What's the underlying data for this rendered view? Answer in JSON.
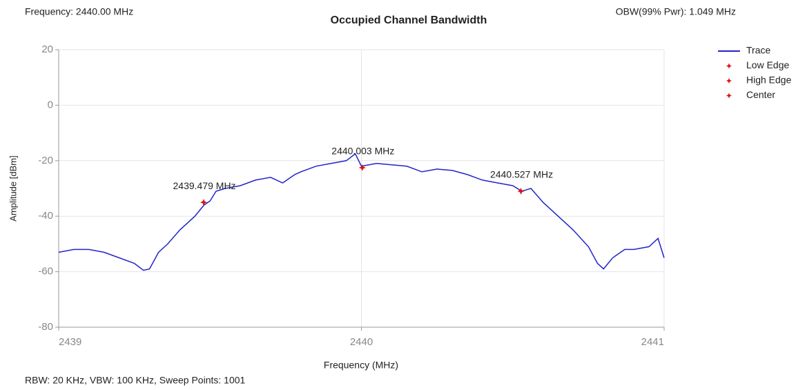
{
  "chart_data": {
    "type": "line",
    "title": "Occupied Channel Bandwidth",
    "top_left": "Frequency: 2440.00 MHz",
    "top_right": "OBW(99% Pwr): 1.049 MHz",
    "footer": "RBW: 20 KHz,  VBW: 100 KHz,  Sweep Points: 1001",
    "xlabel": "Frequency (MHz)",
    "ylabel": "Amplitude [dBm]",
    "xlim": [
      2439,
      2441
    ],
    "xticks": [
      2439,
      2440,
      2441
    ],
    "ylim": [
      -80,
      20
    ],
    "yticks": [
      20,
      0,
      -20,
      -40,
      -60,
      -80
    ],
    "grid": true,
    "x": [
      2439.0,
      2439.05,
      2439.1,
      2439.15,
      2439.2,
      2439.25,
      2439.28,
      2439.3,
      2439.33,
      2439.36,
      2439.4,
      2439.45,
      2439.48,
      2439.5,
      2439.52,
      2439.55,
      2439.6,
      2439.65,
      2439.7,
      2439.74,
      2439.78,
      2439.8,
      2439.85,
      2439.9,
      2439.95,
      2439.98,
      2440.0,
      2440.05,
      2440.1,
      2440.15,
      2440.2,
      2440.25,
      2440.3,
      2440.35,
      2440.4,
      2440.45,
      2440.5,
      2440.53,
      2440.56,
      2440.6,
      2440.65,
      2440.7,
      2440.75,
      2440.78,
      2440.8,
      2440.83,
      2440.87,
      2440.9,
      2440.95,
      2440.98,
      2441.0
    ],
    "series": [
      {
        "name": "Trace",
        "color": "#2222cc",
        "values": [
          -53,
          -52,
          -52,
          -53,
          -55,
          -57,
          -59.5,
          -59,
          -53,
          -50,
          -45,
          -40,
          -36,
          -34.5,
          -31,
          -30,
          -29,
          -27,
          -26,
          -28,
          -25,
          -24,
          -22,
          -21,
          -20,
          -17.5,
          -22,
          -21,
          -21.5,
          -22,
          -24,
          -23,
          -23.5,
          -25,
          -27,
          -28,
          -29,
          -31,
          -30,
          -35,
          -40,
          -45,
          -51,
          -57,
          -59,
          -55,
          -52,
          -52,
          -51,
          -48,
          -55
        ]
      }
    ],
    "markers": [
      {
        "name": "Low Edge",
        "color": "#e01010",
        "x": 2439.479,
        "y": -35,
        "label": "2439.479 MHz"
      },
      {
        "name": "High Edge",
        "color": "#e01010",
        "x": 2440.527,
        "y": -31,
        "label": "2440.527 MHz"
      },
      {
        "name": "Center",
        "color": "#e01010",
        "x": 2440.003,
        "y": -22.5,
        "label": "2440.003 MHz"
      }
    ]
  }
}
